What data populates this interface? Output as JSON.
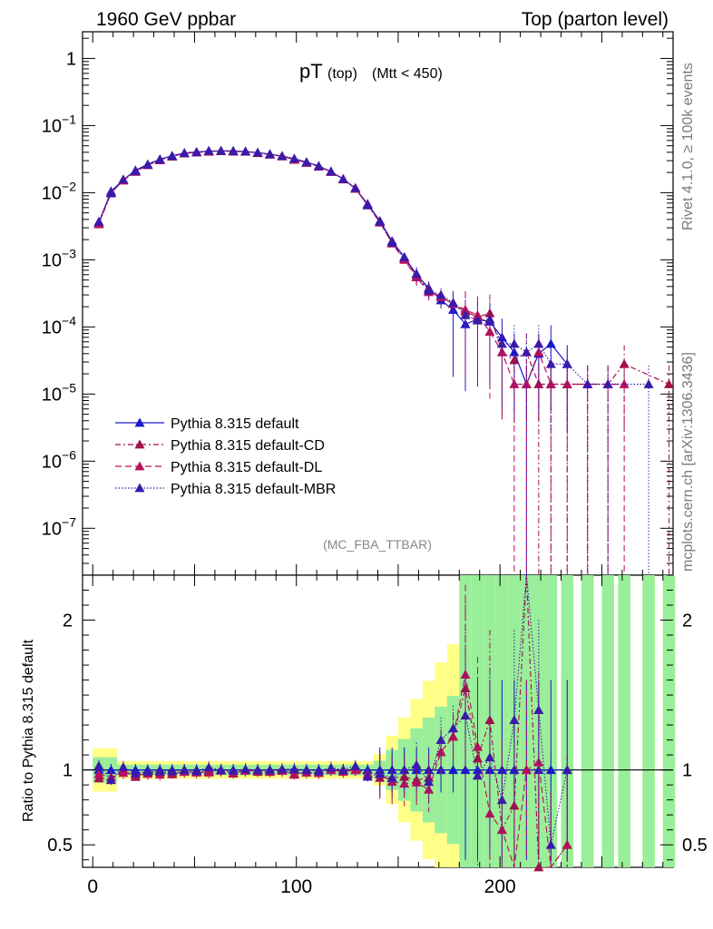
{
  "header": {
    "left": "1960 GeV ppbar",
    "right": "Top (parton level)"
  },
  "side": {
    "rivet": "Rivet 4.1.0, ≥ 100k events",
    "mcplots": "mcplots.cern.ch [arXiv:1306.3436]"
  },
  "chart_data": {
    "type": "line",
    "title_main": "pT",
    "title_sub1": "(top)",
    "title_sub2": "(Mtt < 450)",
    "analysis_tag": "(MC_FBA_TTBAR)",
    "ylabel_ratio": "Ratio to Pythia 8.315 default",
    "xlim": [
      -5,
      285
    ],
    "ylim_log": [
      2e-08,
      2.5
    ],
    "ratio_ylim": [
      0.35,
      2.3
    ],
    "x_ticks": [
      0,
      100,
      200
    ],
    "y_ticks": [
      {
        "exp": 0,
        "label": "1"
      },
      {
        "exp": -1,
        "label": "10",
        "sup": "−1"
      },
      {
        "exp": -2,
        "label": "10",
        "sup": "−2"
      },
      {
        "exp": -3,
        "label": "10",
        "sup": "−3"
      },
      {
        "exp": -4,
        "label": "10",
        "sup": "−4"
      },
      {
        "exp": -5,
        "label": "10",
        "sup": "−5"
      },
      {
        "exp": -6,
        "label": "10",
        "sup": "−6"
      },
      {
        "exp": -7,
        "label": "10",
        "sup": "−7"
      }
    ],
    "ratio_ticks": [
      {
        "value": 0.5,
        "label": "0.5"
      },
      {
        "value": 1,
        "label": "1"
      },
      {
        "value": 2,
        "label": "2"
      }
    ],
    "x": [
      3,
      9,
      15,
      21,
      27,
      33,
      39,
      45,
      51,
      57,
      63,
      69,
      75,
      81,
      87,
      93,
      99,
      105,
      111,
      117,
      123,
      129,
      135,
      141,
      147,
      153,
      159,
      165,
      171,
      177,
      183,
      189,
      195,
      201,
      207,
      213,
      219,
      225,
      233,
      243,
      253,
      261,
      273,
      283
    ],
    "series": [
      {
        "name": "Pythia 8.315 default",
        "color": "#1919cc",
        "dash": "",
        "values": [
          0.0036,
          0.0105,
          0.0155,
          0.0215,
          0.0265,
          0.0315,
          0.0355,
          0.039,
          0.0405,
          0.0415,
          0.042,
          0.042,
          0.041,
          0.0395,
          0.0375,
          0.035,
          0.032,
          0.0285,
          0.025,
          0.0205,
          0.016,
          0.0115,
          0.0068,
          0.0038,
          0.0019,
          0.0011,
          0.0006,
          0.00038,
          0.00025,
          0.00018,
          0.00011,
          0.00013,
          0.00012,
          7e-05,
          4.2e-05,
          1.4e-05,
          4e-05,
          5.6e-05,
          2.8e-05,
          null,
          null,
          null,
          null,
          null
        ]
      },
      {
        "name": "Pythia 8.315 default-CD",
        "color": "#a0104a",
        "dash": "6,3,2,3",
        "values": [
          0.0034,
          0.0098,
          0.0155,
          0.0205,
          0.026,
          0.031,
          0.0345,
          0.0385,
          0.04,
          0.041,
          0.042,
          0.041,
          0.041,
          0.039,
          0.037,
          0.035,
          0.031,
          0.028,
          0.0245,
          0.0205,
          0.016,
          0.0115,
          0.0065,
          0.0036,
          0.0018,
          0.00105,
          0.00056,
          0.00036,
          0.00028,
          0.00022,
          0.00017,
          0.00014,
          0.00016,
          4.2e-05,
          3.2e-05,
          4.2e-05,
          1.4e-05,
          1.4e-05,
          1.4e-05,
          1.4e-05,
          1.4e-05,
          2.8e-05,
          null,
          1.4e-05
        ]
      },
      {
        "name": "Pythia 8.315 default-DL",
        "color": "#b8105a",
        "dash": "7,4",
        "values": [
          0.0035,
          0.01,
          0.0152,
          0.0208,
          0.0258,
          0.0305,
          0.0348,
          0.0385,
          0.0398,
          0.0408,
          0.0418,
          0.0412,
          0.0408,
          0.0392,
          0.0372,
          0.0348,
          0.0312,
          0.028,
          0.0245,
          0.0205,
          0.0158,
          0.0115,
          0.0066,
          0.0037,
          0.00175,
          0.001,
          0.00055,
          0.00033,
          0.00028,
          0.00022,
          0.00018,
          0.00015,
          8.5e-05,
          4.2e-05,
          1.4e-05,
          1.4e-05,
          4.2e-05,
          1.4e-05,
          1.4e-05,
          1.4e-05,
          1.4e-05,
          1.4e-05,
          null,
          null
        ]
      },
      {
        "name": "Pythia 8.315 default-MBR",
        "color": "#3a1aaa",
        "dash": "1.5,2",
        "values": [
          0.0037,
          0.0098,
          0.0158,
          0.021,
          0.0262,
          0.0312,
          0.0352,
          0.039,
          0.0402,
          0.0422,
          0.042,
          0.0418,
          0.0412,
          0.0395,
          0.0375,
          0.0352,
          0.0322,
          0.0285,
          0.0248,
          0.0208,
          0.016,
          0.0118,
          0.0065,
          0.0037,
          0.0018,
          0.0011,
          0.00062,
          0.00035,
          0.0003,
          0.00023,
          0.00015,
          0.000125,
          0.00013,
          5.6e-05,
          5.6e-05,
          4.2e-05,
          5.6e-05,
          2.8e-05,
          2.8e-05,
          1.4e-05,
          1.4e-05,
          null,
          1.4e-05,
          null
        ]
      }
    ]
  }
}
